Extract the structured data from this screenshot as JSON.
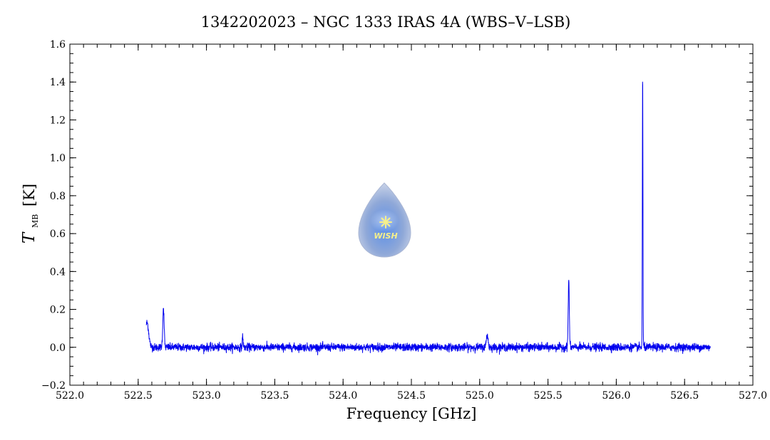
{
  "chart_data": {
    "type": "line",
    "title": "1342202023 – NGC 1333 IRAS 4A (WBS–V–LSB)",
    "xlabel": "Frequency [GHz]",
    "ylabel_main": "T",
    "ylabel_sub": "MB",
    "ylabel_unit": "[K]",
    "xlim": [
      522.0,
      527.0
    ],
    "ylim": [
      -0.2,
      1.6
    ],
    "x_ticks": [
      522.0,
      522.5,
      523.0,
      523.5,
      524.0,
      524.5,
      525.0,
      525.5,
      526.0,
      526.5,
      527.0
    ],
    "x_tick_labels": [
      "522.0",
      "522.5",
      "523.0",
      "523.5",
      "524.0",
      "524.5",
      "525.0",
      "525.5",
      "526.0",
      "526.5",
      "527.0"
    ],
    "y_ticks": [
      -0.2,
      0.0,
      0.2,
      0.4,
      0.6,
      0.8,
      1.0,
      1.2,
      1.4,
      1.6
    ],
    "y_tick_labels": [
      "−0.2",
      "0.0",
      "0.2",
      "0.4",
      "0.6",
      "0.8",
      "1.0",
      "1.2",
      "1.4",
      "1.6"
    ],
    "x_minor_step": 0.1,
    "y_minor_step": 0.05,
    "grid": false,
    "series": [
      {
        "color": "#0000ee",
        "x_start": 522.56,
        "x_end": 526.69,
        "baseline": 0.0,
        "noise_rms": 0.01,
        "lines": [
          {
            "center": 522.565,
            "peak": 0.13,
            "width": 0.012
          },
          {
            "center": 522.685,
            "peak": 0.21,
            "width": 0.005
          },
          {
            "center": 523.265,
            "peak": 0.06,
            "width": 0.003
          },
          {
            "center": 525.055,
            "peak": 0.07,
            "width": 0.006
          },
          {
            "center": 525.652,
            "peak": 0.36,
            "width": 0.004
          },
          {
            "center": 526.193,
            "peak": 1.44,
            "width": 0.0022
          }
        ]
      }
    ]
  },
  "logo": {
    "text": "WISH",
    "drop_color": "#8ea8d8",
    "star_color": "#f7f08a"
  }
}
